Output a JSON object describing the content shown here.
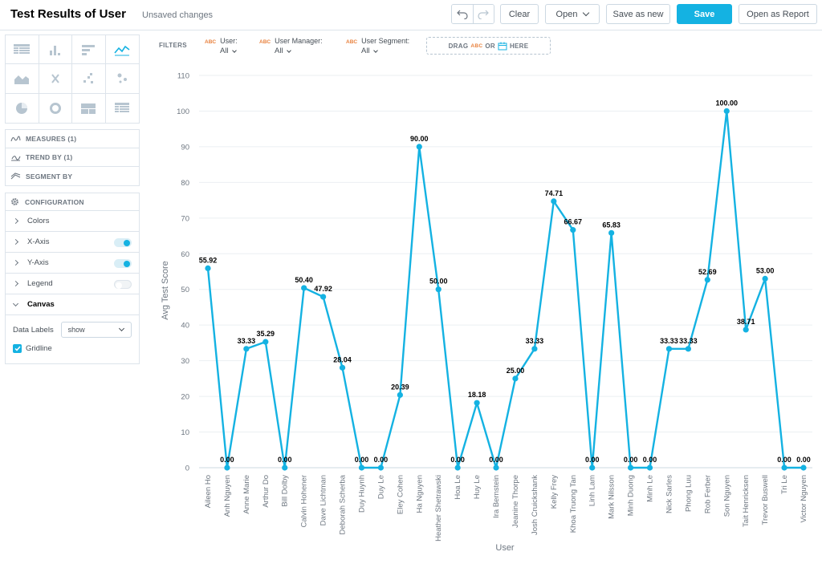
{
  "header": {
    "title": "Test Results of User",
    "status": "Unsaved changes",
    "clear_label": "Clear",
    "open_label": "Open",
    "save_as_new_label": "Save as new",
    "save_label": "Save",
    "open_as_report_label": "Open as Report",
    "undo_icon": "undo-icon",
    "redo_icon": "redo-icon"
  },
  "sidebar": {
    "viz_types": [
      "table",
      "column",
      "bar",
      "line",
      "area",
      "headline",
      "scatter",
      "bubble",
      "pie",
      "donut",
      "treemap",
      "heatmap"
    ],
    "active_viz": "line",
    "buckets": [
      {
        "label": "MEASURES (1)",
        "icon": "measure-icon"
      },
      {
        "label": "TREND BY (1)",
        "icon": "trend-icon"
      },
      {
        "label": "SEGMENT BY",
        "icon": "segment-icon"
      }
    ],
    "configuration": {
      "title": "CONFIGURATION",
      "sections": [
        {
          "label": "Colors"
        },
        {
          "label": "X-Axis",
          "toggle": true
        },
        {
          "label": "Y-Axis",
          "toggle": true
        },
        {
          "label": "Legend",
          "toggle": false
        },
        {
          "label": "Canvas",
          "open": true
        }
      ],
      "data_labels_label": "Data Labels",
      "data_labels_value": "show",
      "gridline_label": "Gridline",
      "gridline_checked": true
    }
  },
  "filters": {
    "label": "FILTERS",
    "abc": "ABC",
    "items": [
      {
        "name": "User:",
        "value": "All"
      },
      {
        "name": "User Manager:",
        "value": "All"
      },
      {
        "name": "User Segment:",
        "value": "All"
      }
    ],
    "dropzone": {
      "drag": "DRAG",
      "abc": "ABC",
      "or": "OR",
      "here": "HERE"
    }
  },
  "colors": {
    "accent": "#14b2e2",
    "line": "#14b2e2"
  },
  "chart_data": {
    "type": "line",
    "xlabel": "User",
    "ylabel": "Avg Test Score",
    "ylim": [
      0,
      110
    ],
    "yticks": [
      0,
      10,
      20,
      30,
      40,
      50,
      60,
      70,
      80,
      90,
      100,
      110
    ],
    "grid": true,
    "categories": [
      "Aileen Ho",
      "Anh Nguyen",
      "Anne Marie",
      "Arthur Do",
      "Bill Dolby",
      "Calvin Hohener",
      "Dave Lichtman",
      "Deborah Scherba",
      "Duy Huynh",
      "Duy Le",
      "Eley Cohen",
      "Ha Nguyen",
      "Heather Shetrawski",
      "Hoa Le",
      "Huy Le",
      "Ira Bernstein",
      "Jeanine Thorpe",
      "Josh Cruickshank",
      "Kelly Frey",
      "Khoa Truong Tan",
      "Linh Lam",
      "Mark Nilsson",
      "Minh Duong",
      "Minh Le",
      "Nick Sarles",
      "Phong Luu",
      "Rob Ferber",
      "Son Nguyen",
      "Tait Henricksen",
      "Trevor Buswell",
      "Tri Le",
      "Victor Nguyen"
    ],
    "series": [
      {
        "values": [
          55.92,
          0,
          33.33,
          35.29,
          0,
          50.4,
          47.92,
          28.04,
          0,
          0,
          20.39,
          90.0,
          50.0,
          0,
          18.18,
          0,
          25.0,
          33.33,
          74.71,
          66.67,
          0,
          65.83,
          0,
          0,
          33.33,
          33.33,
          52.69,
          100.0,
          38.71,
          53.0,
          0,
          0
        ],
        "labels": [
          "55.92",
          "0.00",
          "33.33",
          "35.29",
          "0.00",
          "50.40",
          "47.92",
          "28.04",
          "0.00",
          "0.00",
          "20.39",
          "90.00",
          "50.00",
          "0.00",
          "18.18",
          "0.00",
          "25.00",
          "33.33",
          "74.71",
          "66.67",
          "0.00",
          "65.83",
          "0.00",
          "0.00",
          "33.33",
          "33.33",
          "52.69",
          "100.00",
          "38.71",
          "53.00",
          "0.00",
          "0.00"
        ]
      }
    ]
  }
}
